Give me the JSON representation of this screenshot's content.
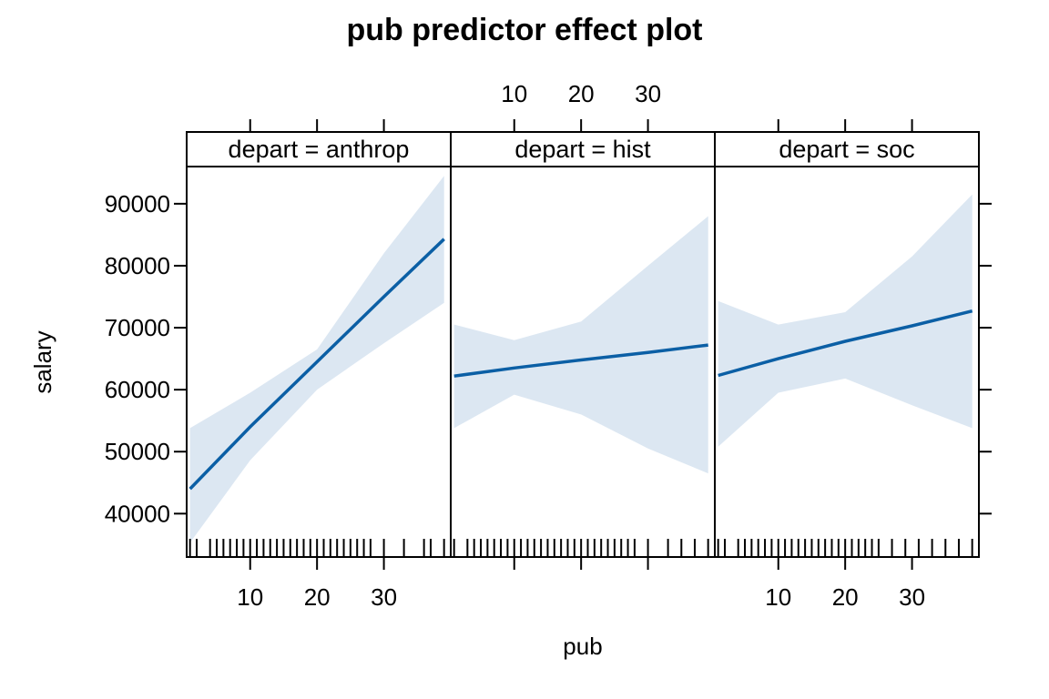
{
  "chart_data": {
    "type": "line",
    "title": "pub predictor effect plot",
    "xlabel": "pub",
    "ylabel": "salary",
    "xlim": [
      0.5,
      40
    ],
    "ylim": [
      33000,
      96000
    ],
    "x_ticks": [
      10,
      20,
      30
    ],
    "y_ticks": [
      40000,
      50000,
      60000,
      70000,
      80000,
      90000
    ],
    "grid": false,
    "colors": {
      "line": "#0b5fa5",
      "band": "#dce7f2",
      "strip": "#eeeeee"
    },
    "panels": [
      {
        "strip": "depart = anthrop",
        "x": [
          1,
          10,
          20,
          30,
          39
        ],
        "fit": [
          44000,
          54000,
          64500,
          75000,
          84300
        ],
        "lower": [
          35300,
          48600,
          60000,
          67500,
          74000
        ],
        "upper": [
          53800,
          59500,
          66500,
          82000,
          94500
        ],
        "rug": [
          1,
          2,
          4,
          5,
          6,
          7,
          8,
          9,
          10,
          11,
          12,
          13,
          14,
          15,
          16,
          17,
          18,
          19,
          20,
          21,
          22,
          23,
          24,
          25,
          26,
          27,
          28,
          30,
          33,
          36,
          37,
          39
        ]
      },
      {
        "strip": "depart = hist",
        "x": [
          1,
          10,
          20,
          30,
          39
        ],
        "fit": [
          62200,
          63500,
          64800,
          66000,
          67200
        ],
        "lower": [
          53800,
          59200,
          56000,
          50500,
          46500
        ],
        "upper": [
          70500,
          68000,
          71000,
          80000,
          88000
        ],
        "rug": [
          1,
          3,
          4,
          5,
          6,
          7,
          8,
          9,
          10,
          11,
          12,
          13,
          14,
          15,
          16,
          17,
          18,
          19,
          20,
          21,
          22,
          23,
          24,
          25,
          26,
          27,
          28,
          30,
          33,
          35,
          37,
          39
        ]
      },
      {
        "strip": "depart = soc",
        "x": [
          1,
          10,
          20,
          30,
          39
        ],
        "fit": [
          62300,
          65000,
          67800,
          70300,
          72700
        ],
        "lower": [
          50800,
          59500,
          61800,
          57500,
          53800
        ],
        "upper": [
          74300,
          70500,
          72500,
          81500,
          91500
        ],
        "rug": [
          1,
          2,
          4,
          5,
          6,
          7,
          8,
          9,
          10,
          11,
          12,
          13,
          14,
          15,
          16,
          17,
          18,
          19,
          20,
          21,
          22,
          23,
          24,
          25,
          27,
          29,
          31,
          33,
          35,
          37,
          39
        ]
      }
    ]
  }
}
